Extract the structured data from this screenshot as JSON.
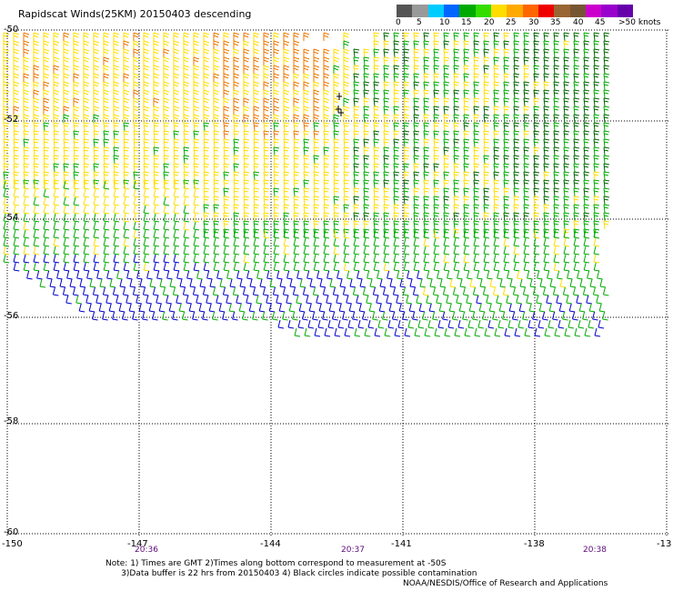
{
  "title": "Rapidscat Winds(25KM) 20150403 descending",
  "speed_scale": {
    "labels": [
      "0",
      "5",
      "10",
      "15",
      "20",
      "25",
      "30",
      "35",
      "40",
      "45",
      ">50 knots"
    ],
    "colors": [
      "#555555",
      "#999999",
      "#00ccff",
      "#0066ff",
      "#00aa00",
      "#33dd00",
      "#ffdd00",
      "#ffaa00",
      "#ff6600",
      "#ee0000",
      "#996633",
      "#775533",
      "#cc00cc",
      "#9900cc",
      "#6600aa"
    ]
  },
  "axes": {
    "lat_labels": [
      "-50",
      "-52",
      "-54",
      "-56",
      "-58",
      "-60"
    ],
    "lon_labels": [
      "-150",
      "-147",
      "-144",
      "-141",
      "-138",
      "-13"
    ]
  },
  "times": [
    "20:36",
    "20:37",
    "20:38"
  ],
  "notes": "Note: 1) Times are GMT 2)Times along bottom correspond to measurement at -50S\n      3)Data buffer is 22 hrs from 20150403 4) Black circles indicate possible contamination",
  "credit": "NOAA/NESDIS/Office of Research and Applications",
  "barb_colors": {
    "blue": "#0000cc",
    "green": "#00aa00",
    "darkgreen": "#006600",
    "yellow": "#ffdd00",
    "orange": "#ee7700",
    "black": "#000000"
  }
}
